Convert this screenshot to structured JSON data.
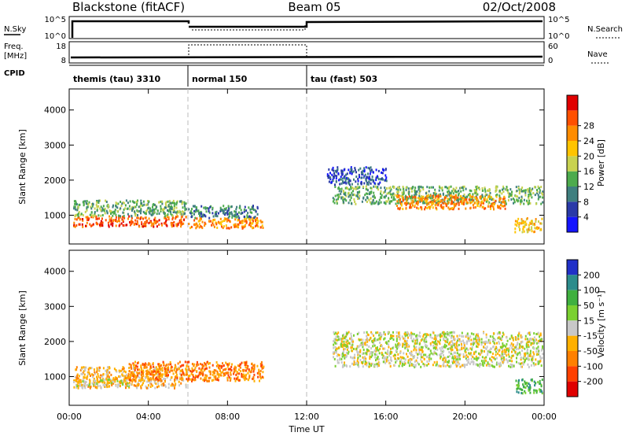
{
  "header": {
    "title": "Blackstone (fitACF)",
    "beam": "Beam 05",
    "date": "02/Oct/2008"
  },
  "summary_panels": {
    "nsky_label": "N.Sky",
    "nsky_ticks": [
      "10^5",
      "10^0"
    ],
    "nsearch_label": "N.Search",
    "nsearch_ticks": [
      "10^5",
      "10^0"
    ],
    "freq_label": "Freq.",
    "freq_unit": "[MHz]",
    "freq_ticks": [
      18,
      8
    ],
    "nave_label": "Nave",
    "nave_ticks": [
      60,
      0
    ],
    "cpid_label": "CPID",
    "cpid_segments": [
      {
        "label": "themis (tau) 3310",
        "start": 0,
        "end": 6
      },
      {
        "label": "normal 150",
        "start": 6,
        "end": 12
      },
      {
        "label": "tau (fast) 503",
        "start": 12,
        "end": 24
      }
    ]
  },
  "colorbars": {
    "power": {
      "label": "Power [dB]",
      "colors": [
        "#1414ff",
        "#2a3aa8",
        "#3f7f7f",
        "#4dab4d",
        "#c8d250",
        "#ffc400",
        "#ff8c00",
        "#ff5000",
        "#e00000"
      ],
      "ticks": [
        4,
        8,
        12,
        16,
        20,
        24,
        28
      ]
    },
    "velocity": {
      "label": "Velocity [m s⁻¹]",
      "colors": [
        "#2030c8",
        "#2c8c8c",
        "#3fb03f",
        "#7ad030",
        "#c8c8c8",
        "#ffb000",
        "#ff8000",
        "#ff4000",
        "#e00000"
      ],
      "ticks": [
        "200",
        "100",
        "50",
        "15",
        "-15",
        "-50",
        "-100",
        "-200"
      ]
    }
  },
  "chart_data": [
    {
      "type": "heatmap",
      "title": "",
      "parameter": "Power [dB]",
      "xlabel": "",
      "ylabel": "Slant Range [km]",
      "xlim": [
        0,
        24
      ],
      "ylim": [
        180,
        4600
      ],
      "yticks": [
        1000,
        2000,
        3000,
        4000
      ],
      "xticks": [
        "00:00",
        "04:00",
        "08:00",
        "12:00",
        "16:00",
        "20:00",
        "00:00"
      ],
      "regions": [
        {
          "t0": 0.2,
          "t1": 5.9,
          "r0": 700,
          "r1": 1000,
          "level": 7
        },
        {
          "t0": 0.2,
          "t1": 5.9,
          "r0": 1000,
          "r1": 1450,
          "level": 3
        },
        {
          "t0": 6.0,
          "t1": 9.8,
          "r0": 650,
          "r1": 950,
          "level": 6
        },
        {
          "t0": 6.0,
          "t1": 9.5,
          "r0": 950,
          "r1": 1300,
          "level": 2
        },
        {
          "t0": 13.3,
          "t1": 23.9,
          "r0": 1350,
          "r1": 1850,
          "level": 3
        },
        {
          "t0": 16.5,
          "t1": 22.0,
          "r0": 1200,
          "r1": 1600,
          "level": 6
        },
        {
          "t0": 13.0,
          "t1": 16.0,
          "r0": 1900,
          "r1": 2400,
          "level": 1
        },
        {
          "t0": 22.5,
          "t1": 23.9,
          "r0": 550,
          "r1": 950,
          "level": 5
        }
      ]
    },
    {
      "type": "heatmap",
      "title": "",
      "parameter": "Velocity [m s⁻¹]",
      "xlabel": "Time UT",
      "ylabel": "Slant Range [km]",
      "xlim": [
        0,
        24
      ],
      "ylim": [
        180,
        4600
      ],
      "yticks": [
        1000,
        2000,
        3000,
        4000
      ],
      "xticks": [
        "00:00",
        "04:00",
        "08:00",
        "12:00",
        "16:00",
        "20:00",
        "00:00"
      ],
      "regions": [
        {
          "t0": 0.2,
          "t1": 5.9,
          "r0": 700,
          "r1": 1300,
          "level": 5
        },
        {
          "t0": 3.0,
          "t1": 9.8,
          "r0": 900,
          "r1": 1450,
          "level": 6
        },
        {
          "t0": 0.2,
          "t1": 3.0,
          "r0": 750,
          "r1": 950,
          "level": 4
        },
        {
          "t0": 13.3,
          "t1": 23.9,
          "r0": 1300,
          "r1": 2300,
          "level": 4
        },
        {
          "t0": 22.5,
          "t1": 23.9,
          "r0": 550,
          "r1": 950,
          "level": 2
        }
      ]
    }
  ]
}
